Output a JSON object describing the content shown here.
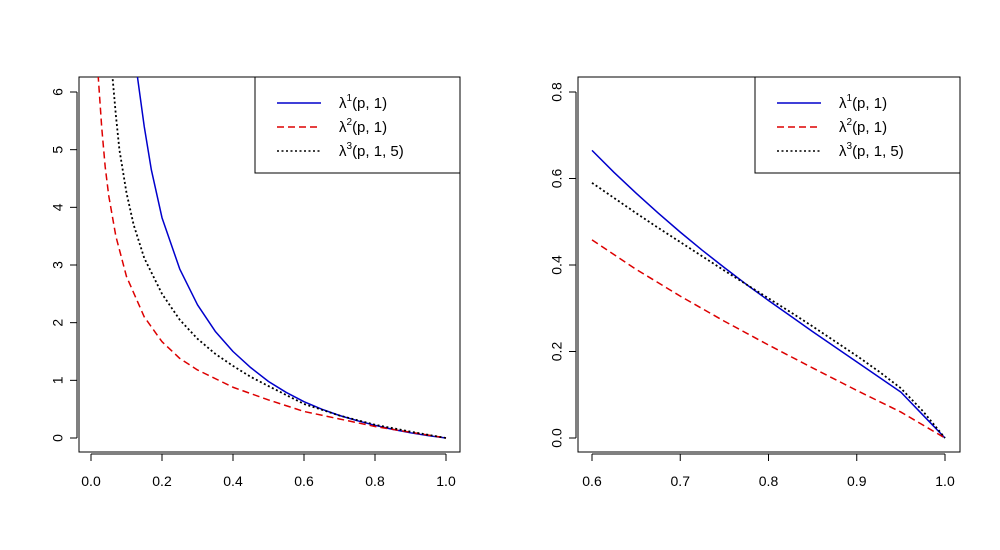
{
  "chart_data": [
    {
      "type": "line",
      "title": "",
      "xlabel": "",
      "ylabel": "",
      "xlim": [
        0.0,
        1.0
      ],
      "ylim": [
        0,
        6
      ],
      "xticks": [
        0.0,
        0.2,
        0.4,
        0.6,
        0.8,
        1.0
      ],
      "xtick_labels": [
        "0.0",
        "0.2",
        "0.4",
        "0.6",
        "0.8",
        "1.0"
      ],
      "yticks": [
        0,
        1,
        2,
        3,
        4,
        5,
        6
      ],
      "ytick_labels": [
        "0",
        "1",
        "2",
        "3",
        "4",
        "5",
        "6"
      ],
      "legend_position": "top-right",
      "series": [
        {
          "name": "λ1(p, 1)",
          "legend": {
            "base": "λ",
            "sup": "1",
            "args": "(p, 1)"
          },
          "color": "#0000cc",
          "style": "solid",
          "x": [
            0.13,
            0.15,
            0.17,
            0.2,
            0.25,
            0.3,
            0.35,
            0.4,
            0.45,
            0.5,
            0.55,
            0.6,
            0.65,
            0.7,
            0.75,
            0.8,
            0.85,
            0.9,
            0.95,
            1.0
          ],
          "y": [
            6.3,
            5.4,
            4.65,
            3.82,
            2.93,
            2.31,
            1.85,
            1.5,
            1.22,
            0.98,
            0.79,
            0.63,
            0.5,
            0.39,
            0.3,
            0.22,
            0.15,
            0.09,
            0.04,
            0.0
          ]
        },
        {
          "name": "λ2(p, 1)",
          "legend": {
            "base": "λ",
            "sup": "2",
            "args": "(p, 1)"
          },
          "color": "#dd0000",
          "style": "dashed",
          "x": [
            0.02,
            0.03,
            0.04,
            0.05,
            0.07,
            0.1,
            0.15,
            0.2,
            0.25,
            0.3,
            0.4,
            0.5,
            0.6,
            0.7,
            0.8,
            0.9,
            1.0
          ],
          "y": [
            6.3,
            5.4,
            4.7,
            4.2,
            3.5,
            2.8,
            2.1,
            1.67,
            1.38,
            1.18,
            0.88,
            0.66,
            0.46,
            0.33,
            0.2,
            0.1,
            0.0
          ]
        },
        {
          "name": "λ3(p, 1, 5)",
          "legend": {
            "base": "λ",
            "sup": "3",
            "args": "(p, 1, 5)"
          },
          "color": "#000000",
          "style": "dotted",
          "x": [
            0.06,
            0.07,
            0.08,
            0.1,
            0.12,
            0.15,
            0.2,
            0.25,
            0.3,
            0.35,
            0.4,
            0.45,
            0.5,
            0.6,
            0.7,
            0.8,
            0.9,
            1.0
          ],
          "y": [
            6.3,
            5.6,
            5.0,
            4.25,
            3.7,
            3.12,
            2.5,
            2.05,
            1.72,
            1.46,
            1.25,
            1.06,
            0.9,
            0.59,
            0.39,
            0.23,
            0.11,
            0.0
          ]
        }
      ]
    },
    {
      "type": "line",
      "title": "",
      "xlabel": "",
      "ylabel": "",
      "xlim": [
        0.6,
        1.0
      ],
      "ylim": [
        0.0,
        0.8
      ],
      "xticks": [
        0.6,
        0.7,
        0.8,
        0.9,
        1.0
      ],
      "xtick_labels": [
        "0.6",
        "0.7",
        "0.8",
        "0.9",
        "1.0"
      ],
      "yticks": [
        0.0,
        0.2,
        0.4,
        0.6,
        0.8
      ],
      "ytick_labels": [
        "0.0",
        "0.2",
        "0.4",
        "0.6",
        "0.8"
      ],
      "legend_position": "top-right",
      "series": [
        {
          "name": "λ1(p, 1)",
          "legend": {
            "base": "λ",
            "sup": "1",
            "args": "(p, 1)"
          },
          "color": "#0000cc",
          "style": "solid",
          "x": [
            0.6,
            0.625,
            0.65,
            0.675,
            0.7,
            0.725,
            0.75,
            0.775,
            0.8,
            0.825,
            0.85,
            0.875,
            0.9,
            0.925,
            0.95,
            0.975,
            1.0
          ],
          "y": [
            0.665,
            0.614,
            0.566,
            0.52,
            0.476,
            0.434,
            0.394,
            0.355,
            0.318,
            0.282,
            0.246,
            0.211,
            0.176,
            0.141,
            0.106,
            0.053,
            0.0
          ]
        },
        {
          "name": "λ2(p, 1)",
          "legend": {
            "base": "λ",
            "sup": "2",
            "args": "(p, 1)"
          },
          "color": "#dd0000",
          "style": "dashed",
          "x": [
            0.6,
            0.65,
            0.7,
            0.75,
            0.8,
            0.85,
            0.9,
            0.95,
            1.0
          ],
          "y": [
            0.458,
            0.39,
            0.328,
            0.27,
            0.215,
            0.162,
            0.11,
            0.06,
            0.0
          ]
        },
        {
          "name": "λ3(p, 1, 5)",
          "legend": {
            "base": "λ",
            "sup": "3",
            "args": "(p, 1, 5)"
          },
          "color": "#000000",
          "style": "dotted",
          "x": [
            0.6,
            0.625,
            0.65,
            0.675,
            0.7,
            0.725,
            0.75,
            0.775,
            0.8,
            0.825,
            0.85,
            0.875,
            0.9,
            0.925,
            0.95,
            0.975,
            1.0
          ],
          "y": [
            0.59,
            0.555,
            0.52,
            0.486,
            0.453,
            0.42,
            0.387,
            0.355,
            0.323,
            0.291,
            0.258,
            0.224,
            0.19,
            0.154,
            0.115,
            0.062,
            0.0
          ]
        }
      ]
    }
  ]
}
